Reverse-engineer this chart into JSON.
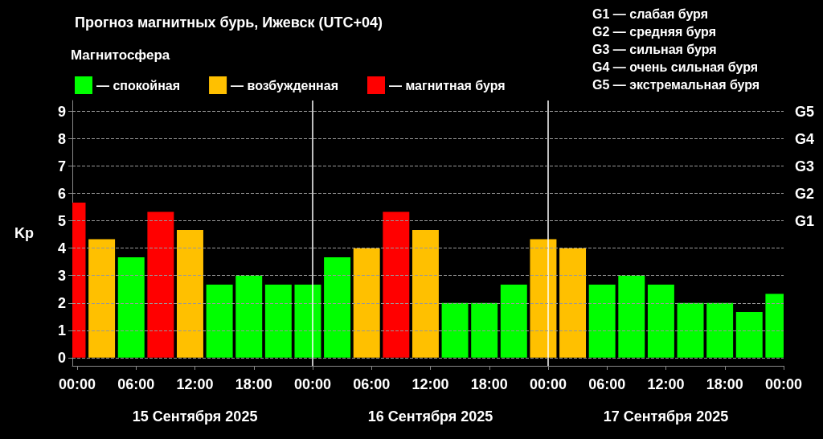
{
  "chart_data": {
    "type": "bar",
    "title": "Прогноз магнитных бурь, Ижевск (UTC+04)",
    "legend_title": "Магнитосфера",
    "ylabel": "Kp",
    "annotations": [
      "G1 — слабая буря",
      "G2 — средняя буря",
      "G3 — сильная буря",
      "G4 — очень сильная буря",
      "G5 — экстремальная буря",
      "15 Сентября 2025",
      "16 Сентября 2025",
      "17 Сентября 2025"
    ],
    "x": [
      "2025-09-14T23:30",
      "2025-09-15T02:30",
      "2025-09-15T05:30",
      "2025-09-15T08:30",
      "2025-09-15T11:30",
      "2025-09-15T14:30",
      "2025-09-15T17:30",
      "2025-09-15T20:30",
      "2025-09-15T23:30",
      "2025-09-16T02:30",
      "2025-09-16T05:30",
      "2025-09-16T08:30",
      "2025-09-16T11:30",
      "2025-09-16T14:30",
      "2025-09-16T17:30",
      "2025-09-16T20:30",
      "2025-09-16T23:30",
      "2025-09-17T02:30",
      "2025-09-17T05:30",
      "2025-09-17T08:30",
      "2025-09-17T11:30",
      "2025-09-17T14:30",
      "2025-09-17T17:30",
      "2025-09-17T20:30",
      "2025-09-17T23:30"
    ],
    "series": [
      {
        "name": "— спокойная",
        "color": "#00ff00",
        "values": [
          null,
          null,
          3.67,
          null,
          null,
          2.67,
          3,
          2.67,
          2.67,
          3.67,
          null,
          null,
          null,
          2,
          2,
          2.67,
          null,
          null,
          2.67,
          3,
          2.67,
          2,
          2,
          1.67,
          2.33
        ]
      },
      {
        "name": "— возбужденная",
        "color": "#ffc000",
        "values": [
          null,
          4.33,
          null,
          null,
          4.67,
          null,
          null,
          null,
          null,
          null,
          4,
          null,
          4.67,
          null,
          null,
          null,
          4.33,
          4,
          null,
          null,
          null,
          null,
          null,
          null,
          null
        ]
      },
      {
        "name": "— магнитная буря",
        "color": "#ff0000",
        "values": [
          5.67,
          null,
          null,
          5.33,
          null,
          null,
          null,
          null,
          null,
          null,
          null,
          5.33,
          null,
          null,
          null,
          null,
          null,
          null,
          null,
          null,
          null,
          null,
          null,
          null,
          null
        ]
      }
    ],
    "xlim": [
      "2025-09-14T23:30",
      "2025-09-18T00:00"
    ],
    "xticks": [
      {
        "value": "2025-09-15T00:00",
        "label": "00:00"
      },
      {
        "value": "2025-09-15T06:00",
        "label": "06:00"
      },
      {
        "value": "2025-09-15T12:00",
        "label": "12:00"
      },
      {
        "value": "2025-09-15T18:00",
        "label": "18:00"
      },
      {
        "value": "2025-09-16T00:00",
        "label": "00:00"
      },
      {
        "value": "2025-09-16T06:00",
        "label": "06:00"
      },
      {
        "value": "2025-09-16T12:00",
        "label": "12:00"
      },
      {
        "value": "2025-09-16T18:00",
        "label": "18:00"
      },
      {
        "value": "2025-09-17T00:00",
        "label": "00:00"
      },
      {
        "value": "2025-09-17T06:00",
        "label": "06:00"
      },
      {
        "value": "2025-09-17T12:00",
        "label": "12:00"
      },
      {
        "value": "2025-09-17T18:00",
        "label": "18:00"
      },
      {
        "value": "2025-09-18T00:00",
        "label": "00:00"
      }
    ],
    "ylim": [
      -0.3,
      9.4
    ],
    "yticks": [
      0,
      1,
      2,
      3,
      4,
      5,
      6,
      7,
      8,
      9
    ],
    "ref_lines": [
      {
        "axis": "x",
        "value": "2025-09-16T00:00",
        "color": "#ffffff"
      },
      {
        "axis": "x",
        "value": "2025-09-17T00:00",
        "color": "#ffffff"
      },
      {
        "axis": "y",
        "value": 0,
        "color": "#999999",
        "line_style": "dashed"
      },
      {
        "axis": "y",
        "value": 1,
        "color": "#999999",
        "line_style": "dashed"
      },
      {
        "axis": "y",
        "value": 2,
        "color": "#999999",
        "line_style": "dashed"
      },
      {
        "axis": "y",
        "value": 3,
        "color": "#999999",
        "line_style": "dashed"
      },
      {
        "axis": "y",
        "value": 4,
        "color": "#999999",
        "line_style": "dashed"
      },
      {
        "axis": "y",
        "value": 5,
        "label": "G1",
        "color": "#999999",
        "line_style": "dashed"
      },
      {
        "axis": "y",
        "value": 6,
        "label": "G2",
        "color": "#999999",
        "line_style": "dashed"
      },
      {
        "axis": "y",
        "value": 7,
        "label": "G3",
        "color": "#999999",
        "line_style": "dashed"
      },
      {
        "axis": "y",
        "value": 8,
        "label": "G4",
        "color": "#999999",
        "line_style": "dashed"
      },
      {
        "axis": "y",
        "value": 9,
        "label": "G5",
        "color": "#999999",
        "line_style": "dashed"
      }
    ],
    "legend": "top left"
  }
}
